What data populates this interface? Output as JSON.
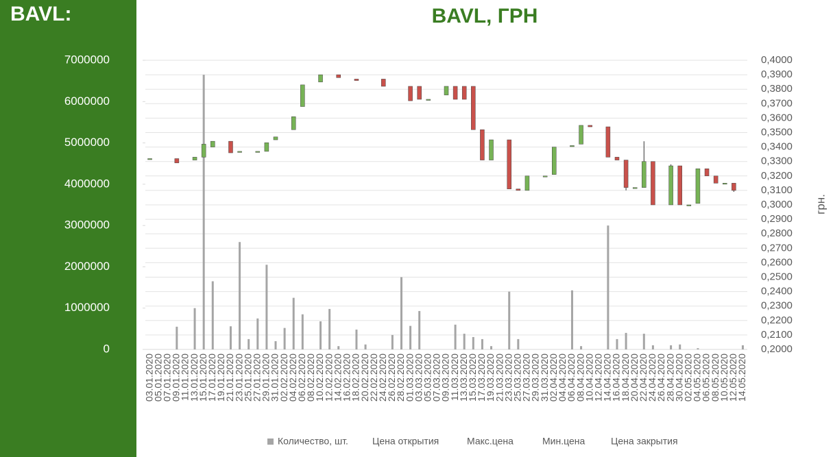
{
  "header": {
    "title": "BAVL:"
  },
  "chart_data": {
    "type": "candlestick",
    "title": "BAVL, ГРН",
    "y2_label": "грн.",
    "up_color": "#77b356",
    "down_color": "#c9514b",
    "categories": [
      "03.01.2020",
      "05.01.2020",
      "07.01.2020",
      "09.01.2020",
      "11.01.2020",
      "13.01.2020",
      "15.01.2020",
      "17.01.2020",
      "19.01.2020",
      "21.01.2020",
      "23.01.2020",
      "25.01.2020",
      "27.01.2020",
      "29.01.2020",
      "31.01.2020",
      "02.02.2020",
      "04.02.2020",
      "06.02.2020",
      "08.02.2020",
      "10.02.2020",
      "12.02.2020",
      "14.02.2020",
      "16.02.2020",
      "18.02.2020",
      "20.02.2020",
      "22.02.2020",
      "24.02.2020",
      "26.02.2020",
      "28.02.2020",
      "01.03.2020",
      "03.03.2020",
      "05.03.2020",
      "07.03.2020",
      "09.03.2020",
      "11.03.2020",
      "13.03.2020",
      "15.03.2020",
      "17.03.2020",
      "19.03.2020",
      "21.03.2020",
      "23.03.2020",
      "25.03.2020",
      "27.03.2020",
      "29.03.2020",
      "31.03.2020",
      "02.04.2020",
      "04.04.2020",
      "06.04.2020",
      "08.04.2020",
      "10.04.2020",
      "12.04.2020",
      "14.04.2020",
      "16.04.2020",
      "18.04.2020",
      "20.04.2020",
      "22.04.2020",
      "24.04.2020",
      "26.04.2020",
      "28.04.2020",
      "30.04.2020",
      "02.05.2020",
      "04.05.2020",
      "06.05.2020",
      "08.05.2020",
      "10.05.2020",
      "12.05.2020",
      "14.05.2020"
    ],
    "series": [
      {
        "name": "Количество, шт.",
        "color": "#a5a5a5",
        "axis": "y",
        "values": [
          null,
          null,
          null,
          550000,
          null,
          1000000,
          6650000,
          1650000,
          null,
          560000,
          2600000,
          250000,
          750000,
          2050000,
          200000,
          520000,
          1250000,
          850000,
          null,
          680000,
          980000,
          80000,
          null,
          480000,
          120000,
          null,
          null,
          350000,
          1750000,
          570000,
          930000,
          null,
          null,
          null,
          600000,
          380000,
          300000,
          250000,
          80000,
          null,
          1400000,
          250000,
          null,
          null,
          null,
          null,
          null,
          1430000,
          80000,
          null,
          null,
          3000000,
          250000,
          400000,
          null,
          380000,
          100000,
          null,
          100000,
          120000,
          null,
          30000,
          null,
          null,
          null,
          null,
          100000
        ]
      },
      {
        "name": "Цена открытия",
        "axis": "y2",
        "values": [
          0.332,
          null,
          null,
          0.332,
          null,
          0.331,
          0.333,
          0.34,
          null,
          0.344,
          0.337,
          null,
          0.337,
          0.337,
          0.345,
          null,
          0.352,
          0.368,
          null,
          0.385,
          null,
          0.39,
          null,
          0.387,
          null,
          null,
          0.387,
          null,
          null,
          0.382,
          0.382,
          0.373,
          null,
          0.376,
          0.382,
          0.382,
          0.382,
          0.352,
          0.331,
          null,
          0.345,
          0.311,
          0.31,
          null,
          0.32,
          0.321,
          null,
          0.341,
          0.342,
          0.355,
          null,
          0.354,
          0.333,
          0.331,
          0.312,
          0.312,
          0.33,
          null,
          0.3,
          0.327,
          0.3,
          0.301,
          0.325,
          0.32,
          0.315,
          0.315,
          null
        ]
      },
      {
        "name": "Макс.цена",
        "axis": "y2",
        "values": [
          0.332,
          null,
          null,
          0.332,
          null,
          0.333,
          0.342,
          0.344,
          null,
          0.344,
          0.337,
          null,
          0.337,
          0.343,
          0.347,
          null,
          0.361,
          0.383,
          null,
          0.39,
          null,
          0.39,
          null,
          0.387,
          null,
          null,
          0.387,
          null,
          null,
          0.382,
          0.382,
          0.373,
          null,
          0.382,
          0.382,
          0.382,
          0.382,
          0.352,
          0.345,
          null,
          0.345,
          0.311,
          0.32,
          null,
          0.32,
          0.34,
          null,
          0.341,
          0.355,
          0.355,
          null,
          0.354,
          0.333,
          0.331,
          0.312,
          0.344,
          0.33,
          null,
          0.328,
          0.327,
          0.3,
          0.325,
          0.325,
          0.32,
          0.315,
          0.315,
          null
        ]
      },
      {
        "name": "Мин.цена",
        "axis": "y2",
        "values": [
          0.332,
          null,
          null,
          0.329,
          null,
          0.331,
          0.333,
          0.34,
          null,
          0.336,
          0.337,
          null,
          0.337,
          0.337,
          0.345,
          null,
          0.352,
          0.368,
          null,
          0.385,
          null,
          0.388,
          null,
          0.386,
          null,
          null,
          0.382,
          null,
          null,
          0.372,
          0.373,
          0.373,
          null,
          0.376,
          0.373,
          0.373,
          0.352,
          0.331,
          0.331,
          null,
          0.311,
          0.31,
          0.31,
          null,
          0.32,
          0.321,
          null,
          0.341,
          0.342,
          0.354,
          null,
          0.333,
          0.331,
          0.31,
          0.312,
          0.312,
          0.3,
          null,
          0.3,
          0.3,
          0.3,
          0.301,
          0.32,
          0.315,
          0.315,
          0.309,
          null
        ]
      },
      {
        "name": "Цена закрытия",
        "axis": "y2",
        "values": [
          0.332,
          null,
          null,
          0.329,
          null,
          0.333,
          0.342,
          0.344,
          null,
          0.336,
          0.337,
          null,
          0.337,
          0.343,
          0.347,
          null,
          0.361,
          0.383,
          null,
          0.39,
          null,
          0.388,
          null,
          0.386,
          null,
          null,
          0.382,
          null,
          null,
          0.372,
          0.373,
          0.373,
          null,
          0.382,
          0.373,
          0.373,
          0.352,
          0.331,
          0.345,
          null,
          0.311,
          0.31,
          0.32,
          null,
          0.32,
          0.34,
          null,
          0.341,
          0.355,
          0.354,
          null,
          0.333,
          0.331,
          0.312,
          0.312,
          0.33,
          0.3,
          null,
          0.327,
          0.3,
          0.3,
          0.325,
          0.32,
          0.315,
          0.315,
          0.31,
          null
        ]
      }
    ],
    "ylim": [
      0,
      7000000
    ],
    "yticks": [
      0,
      1000000,
      2000000,
      3000000,
      4000000,
      5000000,
      6000000,
      7000000
    ],
    "y2lim": [
      0.2,
      0.4
    ],
    "y2ticks": [
      {
        "value": 0.2,
        "label": "0,2000"
      },
      {
        "value": 0.21,
        "label": "0,2100"
      },
      {
        "value": 0.22,
        "label": "0,2200"
      },
      {
        "value": 0.23,
        "label": "0,2300"
      },
      {
        "value": 0.24,
        "label": "0,2400"
      },
      {
        "value": 0.25,
        "label": "0,2500"
      },
      {
        "value": 0.26,
        "label": "0,2600"
      },
      {
        "value": 0.27,
        "label": "0,2700"
      },
      {
        "value": 0.28,
        "label": "0,2800"
      },
      {
        "value": 0.29,
        "label": "0,2900"
      },
      {
        "value": 0.3,
        "label": "0,3000"
      },
      {
        "value": 0.31,
        "label": "0,3100"
      },
      {
        "value": 0.32,
        "label": "0,3200"
      },
      {
        "value": 0.33,
        "label": "0,3300"
      },
      {
        "value": 0.34,
        "label": "0,3400"
      },
      {
        "value": 0.35,
        "label": "0,3500"
      },
      {
        "value": 0.36,
        "label": "0,3600"
      },
      {
        "value": 0.37,
        "label": "0,3700"
      },
      {
        "value": 0.38,
        "label": "0,3800"
      },
      {
        "value": 0.39,
        "label": "0,3900"
      },
      {
        "value": 0.4,
        "label": "0,4000"
      }
    ],
    "grid": true
  }
}
